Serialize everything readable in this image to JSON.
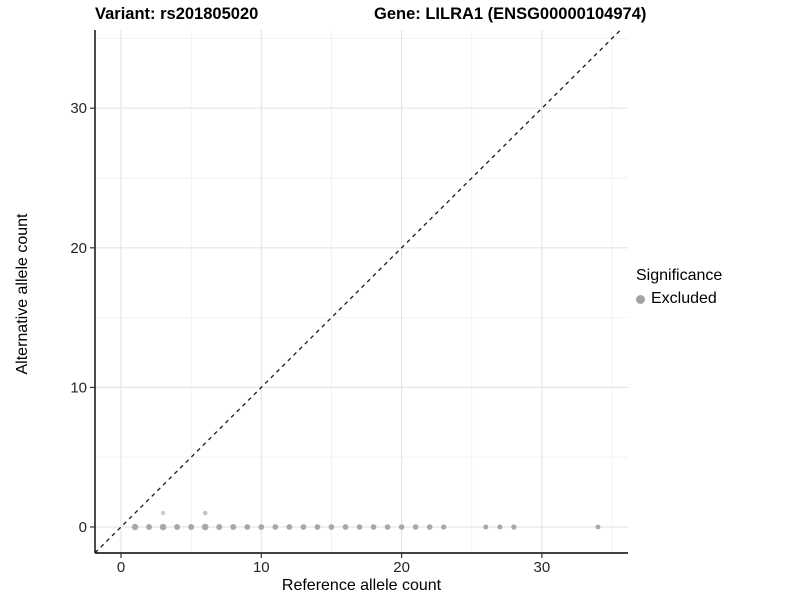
{
  "chart_data": {
    "type": "scatter",
    "titles": {
      "left": "Variant: rs201805020",
      "right": "Gene: LILRA1 (ENSG00000104974)"
    },
    "xlabel": "Reference allele count",
    "ylabel": "Alternative allele count",
    "xlim": [
      -1.85,
      36.1
    ],
    "ylim": [
      -1.86,
      35.6
    ],
    "x_ticks": [
      0,
      10,
      20,
      30
    ],
    "y_ticks": [
      0,
      10,
      20,
      30
    ],
    "x_minor_ticks": [
      5,
      15,
      25,
      35
    ],
    "y_minor_ticks": [
      5,
      15,
      25,
      35
    ],
    "grid": "major+minor",
    "identity_line": {
      "present": true,
      "style": "dashed",
      "slope": 1,
      "intercept": 0
    },
    "legend": {
      "title": "Significance",
      "position": "right",
      "items": [
        {
          "label": "Excluded",
          "color": "#a3a3a3"
        }
      ]
    },
    "series": [
      {
        "name": "Excluded",
        "color": "#a8a8a8",
        "points": [
          [
            1,
            0,
            3.2
          ],
          [
            2,
            0,
            3.0
          ],
          [
            3,
            0,
            3.3
          ],
          [
            4,
            0,
            3.0
          ],
          [
            5,
            0,
            3.0
          ],
          [
            6,
            0,
            3.3
          ],
          [
            7,
            0,
            3.0
          ],
          [
            8,
            0,
            3.0
          ],
          [
            9,
            0,
            2.9
          ],
          [
            10,
            0,
            2.9
          ],
          [
            11,
            0,
            2.9
          ],
          [
            12,
            0,
            2.9
          ],
          [
            13,
            0,
            2.9
          ],
          [
            14,
            0,
            2.9
          ],
          [
            15,
            0,
            2.9
          ],
          [
            16,
            0,
            2.9
          ],
          [
            17,
            0,
            2.8
          ],
          [
            18,
            0,
            2.8
          ],
          [
            19,
            0,
            2.8
          ],
          [
            20,
            0,
            2.8
          ],
          [
            21,
            0,
            2.8
          ],
          [
            22,
            0,
            2.8
          ],
          [
            23,
            0,
            2.6
          ],
          [
            26,
            0,
            2.5
          ],
          [
            27,
            0,
            2.5
          ],
          [
            28,
            0,
            2.6
          ],
          [
            34,
            0,
            2.4
          ],
          [
            3,
            1,
            2.2,
            "#cccccc"
          ],
          [
            6,
            1,
            2.3,
            "#c3c3c3"
          ]
        ]
      }
    ]
  },
  "colors": {
    "background": "#ffffff",
    "grid_major": "#e5e5e5",
    "grid_minor": "#f2f2f2",
    "axis_line": "#000000",
    "tick_mark": "#333333",
    "tick_label": "#262626",
    "identity_line": "#1a1a1a"
  }
}
